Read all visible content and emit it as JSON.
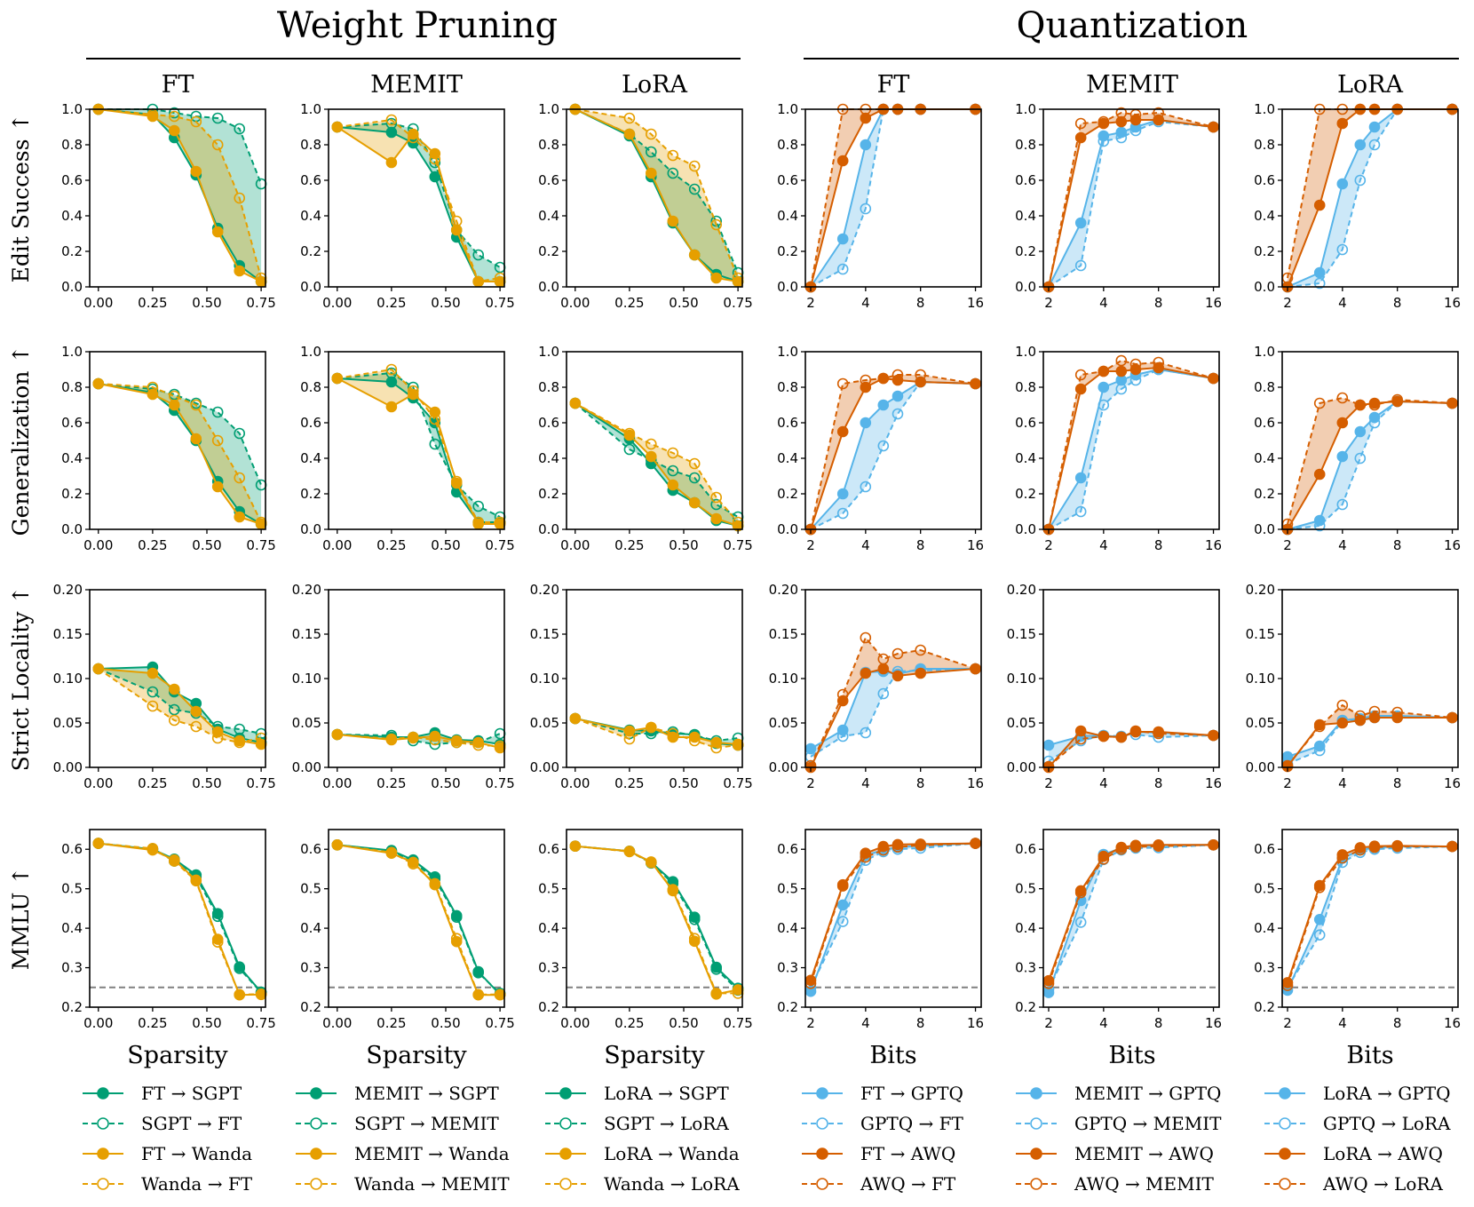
{
  "groups": [
    {
      "title": "Weight Pruning"
    },
    {
      "title": "Quantization"
    }
  ],
  "columns": [
    {
      "title": "FT",
      "method": "FT",
      "type": "prune",
      "xlabel": "Sparsity"
    },
    {
      "title": "MEMIT",
      "method": "MEMIT",
      "type": "prune",
      "xlabel": "Sparsity"
    },
    {
      "title": "LoRA",
      "method": "LoRA",
      "type": "prune",
      "xlabel": "Sparsity"
    },
    {
      "title": "FT",
      "method": "FT",
      "type": "quant",
      "xlabel": "Bits"
    },
    {
      "title": "MEMIT",
      "method": "MEMIT",
      "type": "quant",
      "xlabel": "Bits"
    },
    {
      "title": "LoRA",
      "method": "LoRA",
      "type": "quant",
      "xlabel": "Bits"
    }
  ],
  "rows": [
    {
      "ylabel": "Edit Success ↑"
    },
    {
      "ylabel": "Generalization ↑"
    },
    {
      "ylabel": "Strict Locality ↑"
    },
    {
      "ylabel": "MMLU ↑"
    }
  ],
  "colors": {
    "sgpt": "#009e73",
    "wanda": "#e69f00",
    "gptq": "#56b4e9",
    "awq": "#d55e00",
    "baseline": "#808080"
  },
  "legends": [
    [
      "FT → SGPT",
      "SGPT → FT",
      "FT → Wanda",
      "Wanda → FT"
    ],
    [
      "MEMIT → SGPT",
      "SGPT → MEMIT",
      "MEMIT → Wanda",
      "Wanda → MEMIT"
    ],
    [
      "LoRA → SGPT",
      "SGPT → LoRA",
      "LoRA → Wanda",
      "Wanda → LoRA"
    ],
    [
      "FT → GPTQ",
      "GPTQ → FT",
      "FT → AWQ",
      "AWQ → FT"
    ],
    [
      "MEMIT → GPTQ",
      "GPTQ → MEMIT",
      "MEMIT → AWQ",
      "AWQ → MEMIT"
    ],
    [
      "LoRA → GPTQ",
      "GPTQ → LoRA",
      "LoRA → AWQ",
      "AWQ → LoRA"
    ]
  ],
  "chart_data": {
    "type": "line",
    "axes": {
      "prune": {
        "xlim": [
          -0.04,
          0.77
        ],
        "xticks": [
          0,
          0.25,
          0.5,
          0.75
        ],
        "xticklabels": [
          "0.00",
          "0.25",
          "0.50",
          "0.75"
        ],
        "x": [
          0,
          0.25,
          0.35,
          0.45,
          0.55,
          0.65,
          0.75
        ]
      },
      "quant": {
        "scale": "log2",
        "xlim": [
          1.87,
          17.2
        ],
        "xticks": [
          2,
          4,
          8,
          16
        ],
        "xticklabels": [
          "2",
          "4",
          "8",
          "16"
        ],
        "x": [
          2,
          3,
          4,
          5,
          6,
          8,
          16
        ]
      },
      "rows": [
        {
          "ylim": [
            0,
            1.0
          ],
          "yticks": [
            0,
            0.2,
            0.4,
            0.6,
            0.8,
            1.0
          ],
          "yticklabels": [
            "0.0",
            "0.2",
            "0.4",
            "0.6",
            "0.8",
            "1.0"
          ]
        },
        {
          "ylim": [
            0,
            1.0
          ],
          "yticks": [
            0,
            0.2,
            0.4,
            0.6,
            0.8,
            1.0
          ],
          "yticklabels": [
            "0.0",
            "0.2",
            "0.4",
            "0.6",
            "0.8",
            "1.0"
          ]
        },
        {
          "ylim": [
            0,
            0.2
          ],
          "yticks": [
            0,
            0.05,
            0.1,
            0.15,
            0.2
          ],
          "yticklabels": [
            "0.00",
            "0.05",
            "0.10",
            "0.15",
            "0.20"
          ]
        },
        {
          "ylim": [
            0.2,
            0.65
          ],
          "yticks": [
            0.2,
            0.3,
            0.4,
            0.5,
            0.6
          ],
          "yticklabels": [
            "0.2",
            "0.3",
            "0.4",
            "0.5",
            "0.6"
          ],
          "baseline": 0.25
        }
      ]
    },
    "panels": [
      [
        {
          "ea": [
            1.0,
            0.97,
            0.84,
            0.63,
            0.33,
            0.12,
            0.03
          ],
          "ab": [
            1.0,
            1.0,
            0.98,
            0.96,
            0.95,
            0.89,
            0.58
          ],
          "ec": [
            1.0,
            0.96,
            0.88,
            0.65,
            0.31,
            0.09,
            0.03
          ],
          "cd": [
            1.0,
            0.97,
            0.96,
            0.93,
            0.8,
            0.5,
            0.05
          ]
        },
        {
          "ea": [
            0.9,
            0.87,
            0.81,
            0.62,
            0.28,
            0.03,
            0.03
          ],
          "ab": [
            0.9,
            0.92,
            0.89,
            0.7,
            0.32,
            0.18,
            0.11
          ],
          "ec": [
            0.9,
            0.7,
            0.86,
            0.75,
            0.32,
            0.03,
            0.03
          ],
          "cd": [
            0.9,
            0.94,
            0.84,
            0.72,
            0.37,
            0.03,
            0.05
          ]
        },
        {
          "ea": [
            1.0,
            0.85,
            0.62,
            0.36,
            0.18,
            0.07,
            0.03
          ],
          "ab": [
            1.0,
            0.86,
            0.76,
            0.64,
            0.55,
            0.37,
            0.08
          ],
          "ec": [
            1.0,
            0.86,
            0.64,
            0.37,
            0.18,
            0.05,
            0.03
          ],
          "cd": [
            1.0,
            0.95,
            0.86,
            0.74,
            0.68,
            0.35,
            0.05
          ]
        },
        {
          "ea": [
            0.0,
            0.27,
            0.8,
            1.0,
            1.0,
            1.0,
            1.0
          ],
          "ab": [
            0.0,
            0.1,
            0.44,
            1.0,
            1.0,
            1.0,
            1.0
          ],
          "ec": [
            0.0,
            0.71,
            0.95,
            1.0,
            1.0,
            1.0,
            1.0
          ],
          "cd": [
            0.0,
            1.0,
            1.0,
            1.0,
            1.0,
            1.0,
            1.0
          ]
        },
        {
          "ea": [
            0.0,
            0.36,
            0.85,
            0.87,
            0.9,
            0.94,
            0.9
          ],
          "ab": [
            0.0,
            0.12,
            0.82,
            0.84,
            0.88,
            0.93,
            0.9
          ],
          "ec": [
            0.0,
            0.84,
            0.92,
            0.93,
            0.94,
            0.94,
            0.9
          ],
          "cd": [
            0.0,
            0.92,
            0.93,
            0.98,
            0.97,
            0.98,
            0.9
          ]
        },
        {
          "ea": [
            0.0,
            0.08,
            0.58,
            0.8,
            0.9,
            1.0,
            1.0
          ],
          "ab": [
            0.0,
            0.02,
            0.21,
            0.6,
            0.8,
            1.0,
            1.0
          ],
          "ec": [
            0.0,
            0.46,
            0.92,
            1.0,
            1.0,
            1.0,
            1.0
          ],
          "cd": [
            0.05,
            1.0,
            1.0,
            1.0,
            1.0,
            1.0,
            1.0
          ]
        }
      ],
      [
        {
          "ea": [
            0.82,
            0.77,
            0.67,
            0.5,
            0.27,
            0.1,
            0.03
          ],
          "ab": [
            0.82,
            0.79,
            0.76,
            0.71,
            0.66,
            0.54,
            0.25
          ],
          "ec": [
            0.82,
            0.76,
            0.7,
            0.51,
            0.24,
            0.07,
            0.03
          ],
          "cd": [
            0.82,
            0.8,
            0.75,
            0.7,
            0.5,
            0.29,
            0.04
          ]
        },
        {
          "ea": [
            0.85,
            0.83,
            0.74,
            0.6,
            0.21,
            0.04,
            0.04
          ],
          "ab": [
            0.85,
            0.88,
            0.8,
            0.48,
            0.25,
            0.13,
            0.07
          ],
          "ec": [
            0.85,
            0.69,
            0.76,
            0.66,
            0.26,
            0.03,
            0.03
          ],
          "cd": [
            0.85,
            0.9,
            0.78,
            0.62,
            0.27,
            0.04,
            0.04
          ]
        },
        {
          "ea": [
            0.71,
            0.51,
            0.37,
            0.22,
            0.15,
            0.05,
            0.02
          ],
          "ab": [
            0.71,
            0.45,
            0.39,
            0.33,
            0.29,
            0.14,
            0.07
          ],
          "ec": [
            0.71,
            0.53,
            0.41,
            0.25,
            0.15,
            0.06,
            0.02
          ],
          "cd": [
            0.71,
            0.54,
            0.48,
            0.43,
            0.37,
            0.18,
            0.04
          ]
        },
        {
          "ea": [
            0.0,
            0.2,
            0.6,
            0.7,
            0.75,
            0.83,
            0.82
          ],
          "ab": [
            0.0,
            0.09,
            0.24,
            0.47,
            0.65,
            0.83,
            0.82
          ],
          "ec": [
            0.0,
            0.55,
            0.8,
            0.85,
            0.84,
            0.83,
            0.82
          ],
          "cd": [
            0.0,
            0.82,
            0.84,
            0.85,
            0.87,
            0.87,
            0.82
          ]
        },
        {
          "ea": [
            0.0,
            0.29,
            0.8,
            0.84,
            0.87,
            0.9,
            0.85
          ],
          "ab": [
            0.0,
            0.1,
            0.7,
            0.79,
            0.84,
            0.9,
            0.85
          ],
          "ec": [
            0.0,
            0.79,
            0.89,
            0.89,
            0.9,
            0.91,
            0.85
          ],
          "cd": [
            0.0,
            0.87,
            0.89,
            0.95,
            0.93,
            0.94,
            0.85
          ]
        },
        {
          "ea": [
            0.0,
            0.05,
            0.41,
            0.55,
            0.63,
            0.72,
            0.71
          ],
          "ab": [
            0.0,
            0.02,
            0.14,
            0.4,
            0.6,
            0.72,
            0.71
          ],
          "ec": [
            0.0,
            0.31,
            0.6,
            0.7,
            0.71,
            0.72,
            0.71
          ],
          "cd": [
            0.03,
            0.71,
            0.74,
            0.7,
            0.7,
            0.73,
            0.71
          ]
        }
      ],
      [
        {
          "ea": [
            0.111,
            0.113,
            0.085,
            0.072,
            0.043,
            0.033,
            0.028
          ],
          "ab": [
            0.111,
            0.085,
            0.065,
            0.061,
            0.046,
            0.043,
            0.038
          ],
          "ec": [
            0.111,
            0.106,
            0.088,
            0.063,
            0.04,
            0.03,
            0.026
          ],
          "cd": [
            0.111,
            0.069,
            0.053,
            0.046,
            0.033,
            0.028,
            0.033
          ]
        },
        {
          "ea": [
            0.037,
            0.034,
            0.034,
            0.039,
            0.031,
            0.03,
            0.026
          ],
          "ab": [
            0.037,
            0.036,
            0.03,
            0.026,
            0.028,
            0.028,
            0.038
          ],
          "ec": [
            0.037,
            0.031,
            0.033,
            0.035,
            0.03,
            0.028,
            0.022
          ],
          "cd": [
            0.037,
            0.032,
            0.034,
            0.031,
            0.028,
            0.025,
            0.024
          ]
        },
        {
          "ea": [
            0.055,
            0.042,
            0.041,
            0.038,
            0.037,
            0.027,
            0.025
          ],
          "ab": [
            0.055,
            0.038,
            0.038,
            0.04,
            0.036,
            0.03,
            0.033
          ],
          "ec": [
            0.055,
            0.041,
            0.045,
            0.034,
            0.034,
            0.028,
            0.026
          ],
          "cd": [
            0.055,
            0.032,
            0.045,
            0.038,
            0.03,
            0.022,
            0.025
          ]
        },
        {
          "ea": [
            0.021,
            0.042,
            0.107,
            0.108,
            0.105,
            0.111,
            0.111
          ],
          "ab": [
            0.012,
            0.035,
            0.039,
            0.083,
            0.108,
            0.109,
            0.111
          ],
          "ec": [
            0.0,
            0.075,
            0.106,
            0.111,
            0.103,
            0.106,
            0.111
          ],
          "cd": [
            0.002,
            0.082,
            0.146,
            0.122,
            0.128,
            0.132,
            0.111
          ]
        },
        {
          "ea": [
            0.025,
            0.035,
            0.036,
            0.034,
            0.04,
            0.039,
            0.036
          ],
          "ab": [
            0.007,
            0.03,
            0.036,
            0.035,
            0.037,
            0.034,
            0.036
          ],
          "ec": [
            0.0,
            0.041,
            0.035,
            0.034,
            0.04,
            0.04,
            0.036
          ],
          "cd": [
            0.001,
            0.032,
            0.035,
            0.034,
            0.041,
            0.038,
            0.036
          ]
        },
        {
          "ea": [
            0.012,
            0.024,
            0.053,
            0.055,
            0.058,
            0.058,
            0.056
          ],
          "ab": [
            0.004,
            0.019,
            0.052,
            0.053,
            0.056,
            0.057,
            0.056
          ],
          "ec": [
            0.001,
            0.048,
            0.05,
            0.053,
            0.056,
            0.056,
            0.056
          ],
          "cd": [
            0.002,
            0.046,
            0.07,
            0.058,
            0.063,
            0.062,
            0.056
          ]
        }
      ],
      [
        {
          "ea": [
            0.615,
            0.6,
            0.575,
            0.535,
            0.437,
            0.302,
            0.238
          ],
          "ab": [
            0.615,
            0.601,
            0.57,
            0.53,
            0.43,
            0.298,
            0.237
          ],
          "ec": [
            0.615,
            0.598,
            0.573,
            0.522,
            0.372,
            0.231,
            0.232
          ],
          "cd": [
            0.615,
            0.602,
            0.57,
            0.52,
            0.365,
            0.232,
            0.233
          ]
        },
        {
          "ea": [
            0.611,
            0.597,
            0.573,
            0.53,
            0.432,
            0.29,
            0.232
          ],
          "ab": [
            0.611,
            0.596,
            0.568,
            0.525,
            0.428,
            0.287,
            0.235
          ],
          "ec": [
            0.611,
            0.59,
            0.567,
            0.51,
            0.366,
            0.231,
            0.231
          ],
          "cd": [
            0.611,
            0.592,
            0.563,
            0.513,
            0.374,
            0.232,
            0.232
          ]
        },
        {
          "ea": [
            0.608,
            0.595,
            0.567,
            0.518,
            0.428,
            0.301,
            0.248
          ],
          "ab": [
            0.608,
            0.595,
            0.565,
            0.513,
            0.422,
            0.296,
            0.243
          ],
          "ec": [
            0.608,
            0.595,
            0.568,
            0.495,
            0.367,
            0.233,
            0.244
          ],
          "cd": [
            0.608,
            0.594,
            0.566,
            0.498,
            0.374,
            0.235,
            0.235
          ]
        },
        {
          "ea": [
            0.24,
            0.459,
            0.585,
            0.598,
            0.605,
            0.609,
            0.615
          ],
          "ab": [
            0.25,
            0.417,
            0.572,
            0.594,
            0.6,
            0.603,
            0.615
          ],
          "ec": [
            0.268,
            0.51,
            0.59,
            0.607,
            0.612,
            0.613,
            0.615
          ],
          "cd": [
            0.26,
            0.507,
            0.58,
            0.598,
            0.606,
            0.61,
            0.615
          ]
        },
        {
          "ea": [
            0.237,
            0.47,
            0.587,
            0.603,
            0.608,
            0.61,
            0.611
          ],
          "ab": [
            0.245,
            0.415,
            0.574,
            0.598,
            0.603,
            0.604,
            0.611
          ],
          "ec": [
            0.267,
            0.495,
            0.582,
            0.605,
            0.61,
            0.611,
            0.611
          ],
          "cd": [
            0.26,
            0.49,
            0.575,
            0.6,
            0.606,
            0.608,
            0.611
          ]
        },
        {
          "ea": [
            0.243,
            0.422,
            0.577,
            0.598,
            0.604,
            0.607,
            0.607
          ],
          "ab": [
            0.25,
            0.383,
            0.567,
            0.592,
            0.6,
            0.603,
            0.607
          ],
          "ec": [
            0.262,
            0.508,
            0.586,
            0.604,
            0.608,
            0.609,
            0.607
          ],
          "cd": [
            0.255,
            0.503,
            0.578,
            0.598,
            0.605,
            0.607,
            0.607
          ]
        }
      ]
    ]
  }
}
